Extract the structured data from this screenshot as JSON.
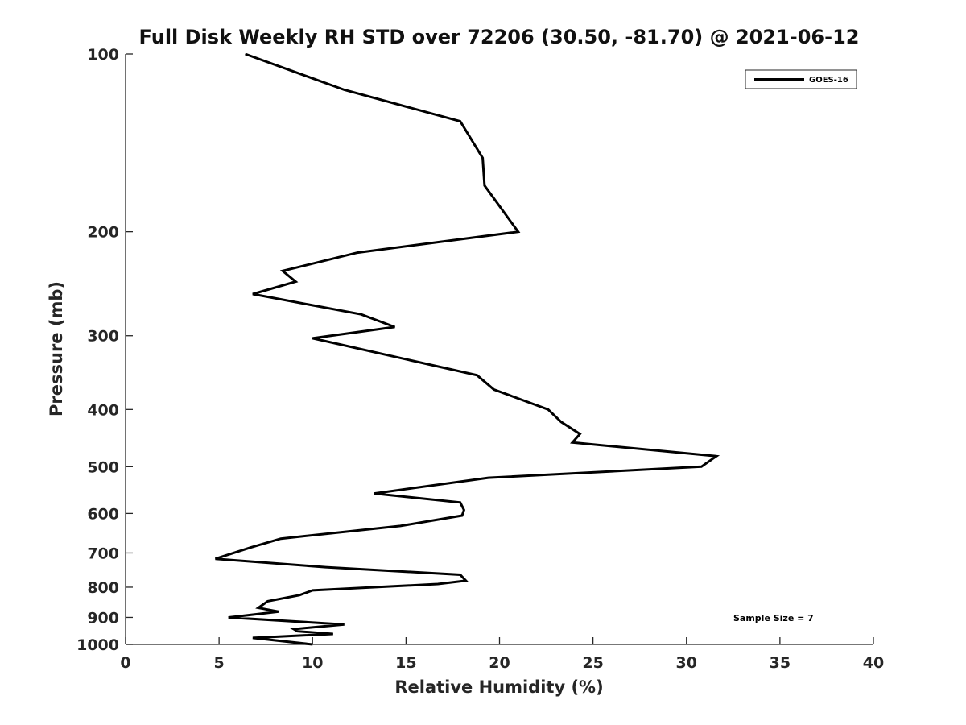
{
  "chart_data": {
    "type": "line",
    "title": "Full Disk Weekly RH STD over 72206 (30.50, -81.70) @ 2021-06-12",
    "xlabel": "Relative Humidity (%)",
    "ylabel": "Pressure (mb)",
    "xlim": [
      0,
      40
    ],
    "ylim": [
      100,
      1000
    ],
    "y_scale": "log",
    "y_reversed": true,
    "x_ticks": [
      "0",
      "5",
      "10",
      "15",
      "20",
      "25",
      "30",
      "35",
      "40"
    ],
    "y_ticks": [
      "100",
      "200",
      "300",
      "400",
      "500",
      "600",
      "700",
      "800",
      "900",
      "1000"
    ],
    "legend": {
      "position": "top-right",
      "entries": [
        "GOES-16"
      ]
    },
    "annotation": "Sample Size = 7",
    "series": [
      {
        "name": "GOES-16",
        "x": [
          6.4,
          11.7,
          17.9,
          19.1,
          19.2,
          21.0,
          12.4,
          8.4,
          9.1,
          6.8,
          12.6,
          14.4,
          10.0,
          18.8,
          19.7,
          22.6,
          23.3,
          24.3,
          23.9,
          31.6,
          30.8,
          19.4,
          13.3,
          17.9,
          18.1,
          18.0,
          14.7,
          8.3,
          6.7,
          4.8,
          10.7,
          17.9,
          18.2,
          16.7,
          10.0,
          9.3,
          7.6,
          7.1,
          8.2,
          5.5,
          11.7,
          9.0,
          9.2,
          11.1,
          6.8,
          10.0
        ],
        "y": [
          100,
          115,
          130,
          150,
          167,
          200,
          217,
          233,
          243,
          255,
          276,
          290,
          303,
          350,
          370,
          400,
          420,
          440,
          455,
          480,
          500,
          522,
          555,
          575,
          592,
          605,
          630,
          662,
          685,
          716,
          740,
          762,
          780,
          790,
          810,
          825,
          845,
          867,
          880,
          900,
          925,
          942,
          950,
          960,
          975,
          1000
        ]
      }
    ]
  }
}
